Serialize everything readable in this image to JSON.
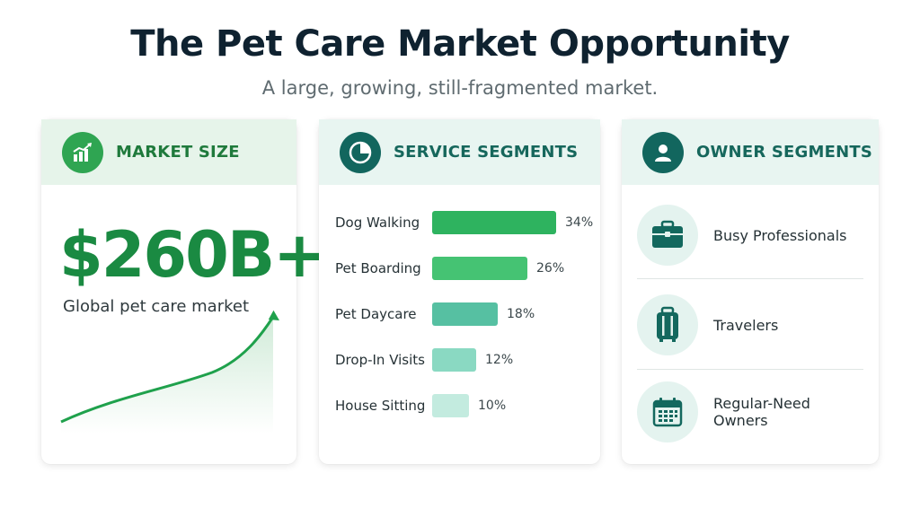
{
  "header": {
    "title": "The Pet Care Market Opportunity",
    "subtitle": "A large, growing, still-fragmented market."
  },
  "market": {
    "heading": "MARKET SIZE",
    "icon": "growth-chart-icon",
    "value": "$260B+",
    "description": "Global pet care market",
    "accent": "#1a8a42"
  },
  "services": {
    "heading": "SERVICE SEGMENTS",
    "icon": "pie-chart-icon",
    "items": [
      {
        "label": "Dog Walking",
        "pct": "34%",
        "value": 34,
        "color": "#2eb35f"
      },
      {
        "label": "Pet Boarding",
        "pct": "26%",
        "value": 26,
        "color": "#45c373"
      },
      {
        "label": "Pet Daycare",
        "pct": "18%",
        "value": 18,
        "color": "#56c0a2"
      },
      {
        "label": "Drop-In Visits",
        "pct": "12%",
        "value": 12,
        "color": "#8ad9c2"
      },
      {
        "label": "House Sitting",
        "pct": "10%",
        "value": 10,
        "color": "#c3ebdf"
      }
    ]
  },
  "owners": {
    "heading": "OWNER SEGMENTS",
    "icon": "user-icon",
    "items": [
      {
        "label": "Busy Professionals",
        "icon": "briefcase-icon"
      },
      {
        "label": "Travelers",
        "icon": "luggage-icon"
      },
      {
        "label": "Regular-Need Owners",
        "icon": "calendar-icon"
      }
    ]
  }
}
